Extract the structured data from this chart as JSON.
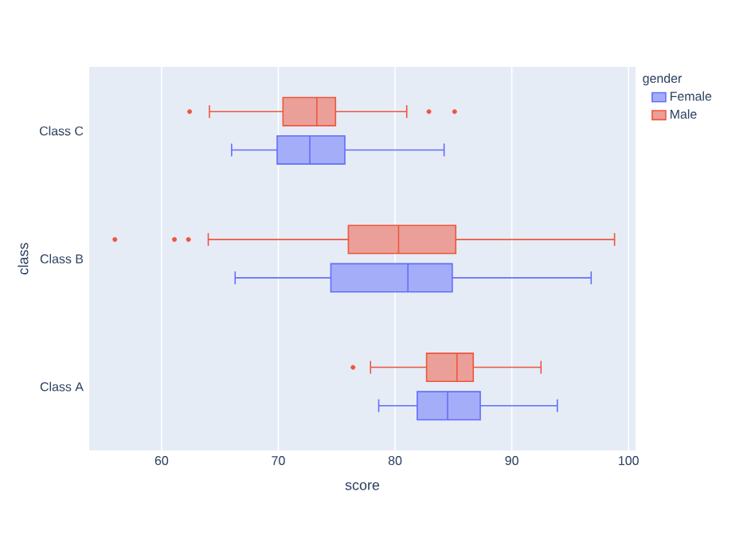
{
  "chart_data": {
    "type": "box",
    "orientation": "horizontal",
    "xlabel": "score",
    "ylabel": "class",
    "legend_title": "gender",
    "legend": "top right",
    "grid": "x",
    "categories": [
      "Class C",
      "Class B",
      "Class A"
    ],
    "xlim": [
      53.8,
      100.6
    ],
    "xticks": [
      60,
      70,
      80,
      90,
      100
    ],
    "series": [
      {
        "name": "Female",
        "color": "#636efa",
        "boxes": [
          {
            "low": 66.0,
            "q1": 69.9,
            "median": 72.7,
            "q3": 75.7,
            "high": 84.2
          },
          {
            "low": 66.3,
            "q1": 74.5,
            "median": 81.1,
            "q3": 84.9,
            "high": 96.8
          },
          {
            "low": 78.6,
            "q1": 81.9,
            "median": 84.5,
            "q3": 87.3,
            "high": 93.9
          }
        ]
      },
      {
        "name": "Male",
        "color": "#ef553b",
        "boxes": [
          {
            "low": 64.1,
            "q1": 70.4,
            "median": 73.3,
            "q3": 74.9,
            "high": 81.0,
            "outliers": [
              62.4,
              82.9,
              85.1
            ]
          },
          {
            "low": 64.0,
            "q1": 76.0,
            "median": 80.3,
            "q3": 85.2,
            "high": 98.8,
            "outliers": [
              56.0,
              61.1,
              62.3
            ]
          },
          {
            "low": 77.9,
            "q1": 82.7,
            "median": 85.3,
            "q3": 86.7,
            "high": 92.5,
            "outliers": [
              76.4
            ]
          }
        ]
      }
    ]
  }
}
